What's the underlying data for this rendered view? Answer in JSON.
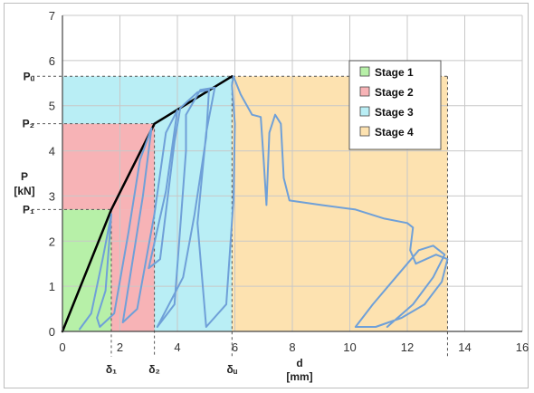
{
  "chart_data": {
    "type": "line",
    "xlabel": "d",
    "xunit": "[mm]",
    "ylabel": "P",
    "yunit": "[kN]",
    "xlim": [
      0,
      16
    ],
    "ylim": [
      0,
      7
    ],
    "xticks": [
      "0",
      "2",
      "4",
      "6",
      "8",
      "10",
      "12",
      "14",
      "16"
    ],
    "yticks": [
      "0",
      "1",
      "2",
      "3",
      "4",
      "5",
      "6",
      "7"
    ],
    "grid": true,
    "legend_position": "top-right",
    "stages": [
      {
        "name": "Stage 1",
        "x_range": [
          0,
          1.7
        ],
        "y_max": 2.7,
        "color": "#b7f0a8"
      },
      {
        "name": "Stage 2",
        "x_range": [
          0,
          3.2
        ],
        "y_max": 4.6,
        "color": "#f7b3b6",
        "y_from": 2.7,
        "x_from": 1.7
      },
      {
        "name": "Stage 3",
        "x_range": [
          0,
          5.9
        ],
        "y_max": 5.65,
        "color": "#b9eef5"
      },
      {
        "name": "Stage 4",
        "x_range": [
          5.9,
          13.4
        ],
        "y_max": 5.65,
        "color": "#fde2b0"
      }
    ],
    "key_points": {
      "P1": 2.7,
      "P2": 4.6,
      "Pu": 5.65,
      "delta1": 1.7,
      "delta2": 3.2,
      "deltau": 5.9,
      "d_end": 13.4
    },
    "marker_labels": {
      "P1": "P₁",
      "P2": "P₂",
      "Pu": "Pᵤ",
      "delta1": "δ₁",
      "delta2": "δ₂",
      "deltau": "δᵤ"
    },
    "series": [
      {
        "color": "#000000",
        "points": [
          [
            0,
            0
          ],
          [
            1.7,
            2.7
          ],
          [
            3.2,
            4.6
          ],
          [
            5.9,
            5.65
          ]
        ]
      },
      {
        "color": "#6fa0d8",
        "points": [
          [
            0.6,
            0.05
          ],
          [
            1.0,
            0.4
          ],
          [
            1.4,
            1.6
          ],
          [
            1.7,
            2.6
          ],
          [
            1.5,
            0.9
          ],
          [
            1.2,
            0.3
          ],
          [
            1.3,
            0.1
          ],
          [
            1.8,
            0.4
          ],
          [
            2.3,
            2.2
          ],
          [
            2.7,
            3.8
          ],
          [
            3.1,
            4.5
          ],
          [
            2.8,
            3.0
          ],
          [
            2.4,
            1.4
          ],
          [
            2.1,
            0.2
          ],
          [
            2.6,
            0.5
          ],
          [
            3.2,
            2.6
          ],
          [
            3.6,
            4.4
          ],
          [
            4.0,
            4.9
          ],
          [
            3.6,
            3.1
          ],
          [
            3.0,
            1.4
          ],
          [
            3.4,
            1.6
          ],
          [
            3.9,
            4.2
          ],
          [
            4.1,
            4.95
          ],
          [
            4.7,
            5.3
          ],
          [
            5.1,
            5.35
          ],
          [
            5.0,
            4.3
          ],
          [
            4.6,
            2.6
          ],
          [
            4.2,
            1.2
          ],
          [
            3.3,
            0.1
          ],
          [
            3.9,
            0.6
          ],
          [
            4.3,
            4.0
          ],
          [
            4.3,
            4.8
          ],
          [
            4.8,
            5.35
          ],
          [
            5.3,
            5.4
          ],
          [
            5.0,
            4.4
          ],
          [
            4.7,
            2.4
          ],
          [
            5.0,
            0.1
          ],
          [
            5.7,
            0.6
          ],
          [
            5.95,
            2.9
          ],
          [
            6.0,
            4.6
          ],
          [
            5.9,
            5.45
          ],
          [
            5.95,
            5.65
          ],
          [
            6.2,
            5.25
          ],
          [
            6.6,
            4.8
          ],
          [
            6.9,
            4.75
          ],
          [
            7.0,
            3.8
          ],
          [
            7.1,
            2.8
          ],
          [
            7.2,
            4.4
          ],
          [
            7.4,
            4.8
          ],
          [
            7.6,
            4.6
          ],
          [
            7.7,
            3.4
          ],
          [
            7.9,
            2.9
          ],
          [
            9.0,
            2.8
          ],
          [
            10.2,
            2.7
          ],
          [
            11.2,
            2.5
          ],
          [
            12.0,
            2.4
          ],
          [
            12.2,
            2.3
          ],
          [
            12.1,
            1.8
          ],
          [
            12.3,
            1.5
          ],
          [
            13.0,
            1.7
          ],
          [
            13.4,
            1.6
          ],
          [
            13.2,
            1.1
          ],
          [
            12.6,
            0.6
          ],
          [
            11.8,
            0.3
          ],
          [
            10.9,
            0.1
          ],
          [
            10.2,
            0.1
          ],
          [
            10.8,
            0.6
          ],
          [
            11.6,
            1.2
          ],
          [
            12.4,
            1.8
          ],
          [
            12.9,
            1.9
          ],
          [
            13.3,
            1.7
          ],
          [
            12.9,
            1.2
          ],
          [
            12.2,
            0.6
          ],
          [
            11.3,
            0.1
          ]
        ]
      }
    ]
  }
}
